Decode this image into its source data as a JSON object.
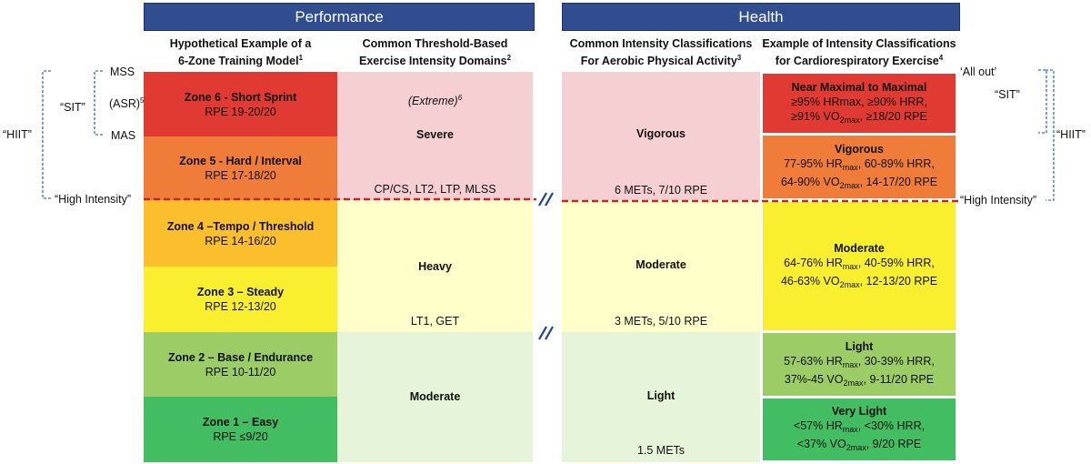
{
  "banners": {
    "performance": "Performance",
    "health": "Health"
  },
  "headers": {
    "col1": {
      "line1": "Hypothetical Example of a",
      "line2": "6-Zone Training Model",
      "sup": "1"
    },
    "col2": {
      "line1": "Common Threshold-Based",
      "line2": "Exercise Intensity Domains",
      "sup": "2"
    },
    "col3": {
      "line1": "Common Intensity Classifications",
      "line2": "For Aerobic Physical Activity",
      "sup": "3"
    },
    "col4": {
      "line1": "Example of Intensity Classifications",
      "line2": "for Cardiorespiratory Exercise",
      "sup": "4"
    }
  },
  "zones": [
    {
      "title": "Zone 6 - Short Sprint",
      "rpe": "RPE 19-20/20",
      "color": "#e03a33"
    },
    {
      "title": "Zone 5 - Hard / Interval",
      "rpe": "RPE  17-18/20",
      "color": "#f07c3a"
    },
    {
      "title": "Zone 4 –Tempo / Threshold",
      "rpe": "RPE 14-16/20",
      "color": "#fbbf2d"
    },
    {
      "title": "Zone 3 – Steady",
      "rpe": "RPE 12-13/20",
      "color": "#f9ef2f"
    },
    {
      "title": "Zone 2 – Base / Endurance",
      "rpe": "RPE  10-11/20",
      "color": "#9ccc65"
    },
    {
      "title": "Zone 1 –  Easy",
      "rpe": "RPE ≤9/20",
      "color": "#43bd62"
    }
  ],
  "domains": {
    "extreme": "(Extreme)",
    "extreme_sup": "6",
    "severe": "Severe",
    "severe_thresholds": "CP/CS, LT2, LTP, MLSS",
    "heavy": "Heavy",
    "heavy_thresholds": "LT1, GET",
    "moderate": "Moderate",
    "colors": {
      "severe": "#f6cfd2",
      "heavy": "#ffffc9",
      "moderate": "#e6f4d9"
    }
  },
  "aerobic": {
    "vigorous": "Vigorous",
    "vigorous_mets": "6 METs, 7/10 RPE",
    "moderate": "Moderate",
    "moderate_mets": "3 METs, 5/10 RPE",
    "light": "Light",
    "light_mets": "1.5 METs"
  },
  "cardio": [
    {
      "title": "Near Maximal to Maximal",
      "line1": "≥95% HRmax, ≥90% HRR,",
      "l2a": "≥91% VO",
      "l2sub": "2max",
      "l2b": ", ≥18/20 RPE",
      "color": "#e03a33"
    },
    {
      "title": "Vigorous",
      "l1a": "77-95% HR",
      "l1sub": "max",
      "l1b": ", 60-89% HRR,",
      "l2a": "64-90% VO",
      "l2sub": "2max",
      "l2b": ", 14-17/20 RPE",
      "color": "#f07c3a"
    },
    {
      "title": "Moderate",
      "l1a": "64-76% HR",
      "l1sub": "max",
      "l1b": ", 40-59% HRR,",
      "l2a": "46-63% VO",
      "l2sub": "2max",
      "l2b": ", 12-13/20 RPE",
      "color": "#f9ef2f"
    },
    {
      "title": "Light",
      "l1a": "57-63% HR",
      "l1sub": "max",
      "l1b": ", 30-39% HRR,",
      "l2a": "37%-45 VO",
      "l2sub": "2max",
      "l2b": ", 9-11/20 RPE",
      "color": "#9ccc65"
    },
    {
      "title": "Very Light",
      "l1a": "<57% HR",
      "l1sub": "max",
      "l1b": ", <30% HRR,",
      "l2a": "<37% VO",
      "l2sub": "2max",
      "l2b": ", 9/20 RPE",
      "color": "#43bd62"
    }
  ],
  "left_labels": {
    "mss": "MSS",
    "asr": "(ASR)",
    "asr_sup": "5",
    "mas": "MAS",
    "sit": "“SIT”",
    "hiit": "“HIIT”",
    "high_intensity": "“High Intensity”"
  },
  "right_labels": {
    "all_out": "‘All out’",
    "sit": "“SIT”",
    "hiit": "“HIIT”",
    "high_intensity": "“High Intensity”"
  },
  "colors": {
    "threshold_line": "#c0282d",
    "bracket": "#3a6fc4",
    "banner": "#2f4d8f",
    "vigorous_bg": "#f6cfd2",
    "moderate_bg": "#ffffc9",
    "light_bg": "#e6f4d9"
  }
}
